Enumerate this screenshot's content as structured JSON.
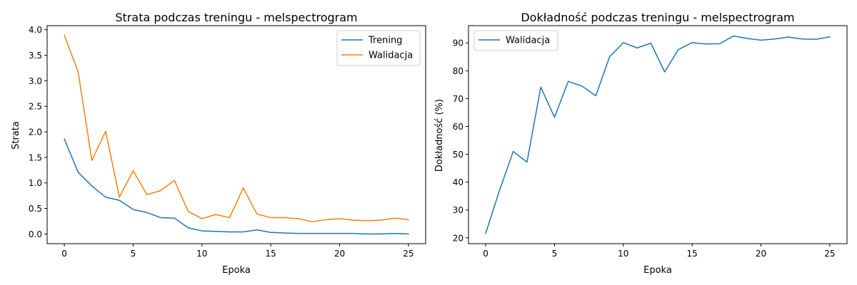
{
  "chart_data": [
    {
      "type": "line",
      "title": "Strata podczas treningu - melspectrogram",
      "xlabel": "Epoka",
      "ylabel": "Strata",
      "xlim": [
        -1.25,
        26.25
      ],
      "ylim": [
        -0.19,
        4.08
      ],
      "xticks": [
        0,
        5,
        10,
        15,
        20,
        25
      ],
      "xtick_labels": [
        "0",
        "5",
        "10",
        "15",
        "20",
        "25"
      ],
      "yticks": [
        0.0,
        0.5,
        1.0,
        1.5,
        2.0,
        2.5,
        3.0,
        3.5,
        4.0
      ],
      "ytick_labels": [
        "0.0",
        "0.5",
        "1.0",
        "1.5",
        "2.0",
        "2.5",
        "3.0",
        "3.5",
        "4.0"
      ],
      "grid": false,
      "legend": "top-right",
      "x": [
        0,
        1,
        2,
        3,
        4,
        5,
        6,
        7,
        8,
        9,
        10,
        11,
        12,
        13,
        14,
        15,
        16,
        17,
        18,
        19,
        20,
        21,
        22,
        23,
        24,
        25
      ],
      "series": [
        {
          "name": "Trening",
          "color": "#1f77b4",
          "values": [
            1.86,
            1.21,
            0.94,
            0.72,
            0.66,
            0.48,
            0.42,
            0.32,
            0.31,
            0.12,
            0.06,
            0.05,
            0.04,
            0.04,
            0.08,
            0.03,
            0.02,
            0.01,
            0.01,
            0.01,
            0.01,
            0.01,
            0.0,
            0.0,
            0.01,
            0.0
          ]
        },
        {
          "name": "Walidacja",
          "color": "#ff7f0e",
          "values": [
            3.89,
            3.18,
            1.44,
            2.01,
            0.72,
            1.24,
            0.77,
            0.85,
            1.05,
            0.44,
            0.3,
            0.38,
            0.32,
            0.9,
            0.39,
            0.32,
            0.32,
            0.3,
            0.24,
            0.28,
            0.3,
            0.27,
            0.26,
            0.27,
            0.31,
            0.28
          ]
        }
      ]
    },
    {
      "type": "line",
      "title": "Dokładność podczas treningu - melspectrogram",
      "xlabel": "Epoka",
      "ylabel": "Dokładność (%)",
      "xlim": [
        -1.25,
        26.25
      ],
      "ylim": [
        17.9,
        96.2
      ],
      "xticks": [
        0,
        5,
        10,
        15,
        20,
        25
      ],
      "xtick_labels": [
        "0",
        "5",
        "10",
        "15",
        "20",
        "25"
      ],
      "yticks": [
        20,
        30,
        40,
        50,
        60,
        70,
        80,
        90
      ],
      "ytick_labels": [
        "20",
        "30",
        "40",
        "50",
        "60",
        "70",
        "80",
        "90"
      ],
      "grid": false,
      "legend": "top-left",
      "x": [
        0,
        1,
        2,
        3,
        4,
        5,
        6,
        7,
        8,
        9,
        10,
        11,
        12,
        13,
        14,
        15,
        16,
        17,
        18,
        19,
        20,
        21,
        22,
        23,
        24,
        25
      ],
      "series": [
        {
          "name": "Walidacja",
          "color": "#1f77b4",
          "values": [
            21.6,
            37.0,
            51.0,
            47.2,
            74.1,
            63.3,
            76.2,
            74.5,
            71.0,
            85.0,
            90.1,
            88.2,
            89.9,
            79.6,
            87.6,
            90.1,
            89.6,
            89.7,
            92.5,
            91.6,
            91.0,
            91.4,
            92.1,
            91.4,
            91.3,
            92.2
          ]
        }
      ]
    }
  ]
}
